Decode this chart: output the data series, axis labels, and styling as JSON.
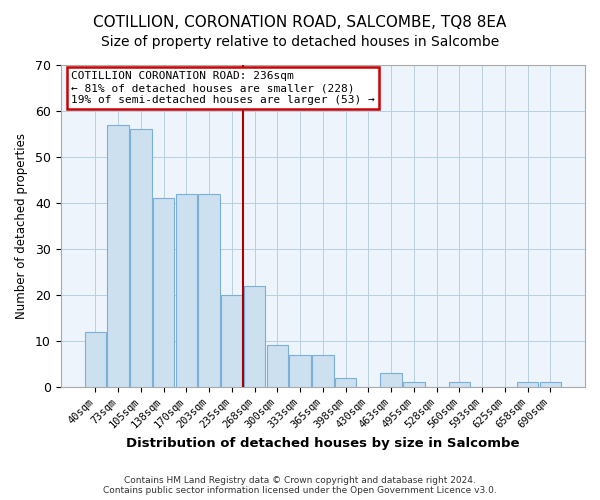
{
  "title": "COTILLION, CORONATION ROAD, SALCOMBE, TQ8 8EA",
  "subtitle": "Size of property relative to detached houses in Salcombe",
  "xlabel": "Distribution of detached houses by size in Salcombe",
  "ylabel": "Number of detached properties",
  "bar_labels": [
    "40sqm",
    "73sqm",
    "105sqm",
    "138sqm",
    "170sqm",
    "203sqm",
    "235sqm",
    "268sqm",
    "300sqm",
    "333sqm",
    "365sqm",
    "398sqm",
    "430sqm",
    "463sqm",
    "495sqm",
    "528sqm",
    "560sqm",
    "593sqm",
    "625sqm",
    "658sqm",
    "690sqm"
  ],
  "bar_heights": [
    12,
    57,
    56,
    41,
    42,
    42,
    20,
    22,
    9,
    7,
    7,
    2,
    0,
    3,
    1,
    0,
    1,
    0,
    0,
    1,
    1
  ],
  "bar_color": "#cce0f0",
  "bar_edge_color": "#7ab0d8",
  "marker_line_index": 6,
  "annotation_title": "COTILLION CORONATION ROAD: 236sqm",
  "annotation_line1": "← 81% of detached houses are smaller (228)",
  "annotation_line2": "19% of semi-detached houses are larger (53) →",
  "ylim": [
    0,
    70
  ],
  "yticks": [
    0,
    10,
    20,
    30,
    40,
    50,
    60,
    70
  ],
  "footer1": "Contains HM Land Registry data © Crown copyright and database right 2024.",
  "footer2": "Contains public sector information licensed under the Open Government Licence v3.0.",
  "marker_line_color": "#aa0000",
  "annotation_box_edge_color": "#cc0000",
  "background_color": "#ffffff",
  "plot_bg_color": "#eef4fb",
  "grid_color": "#b8cfe0",
  "title_fontsize": 11,
  "subtitle_fontsize": 10
}
